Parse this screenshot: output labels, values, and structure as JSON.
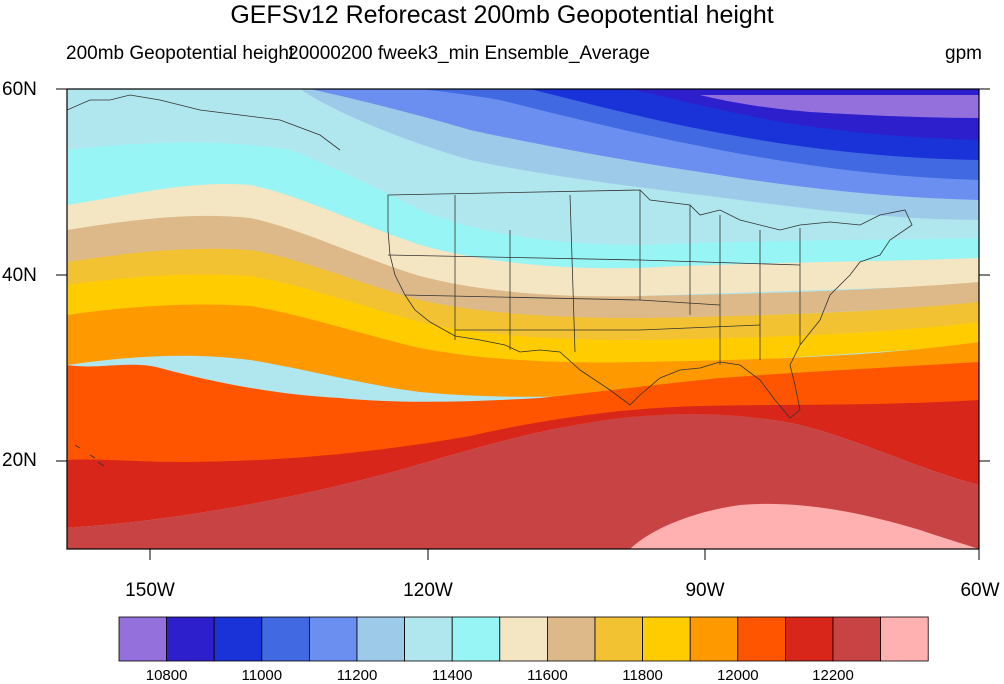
{
  "title": "GEFSv12 Reforecast 200mb Geopotential height",
  "subtitle": {
    "left": "200mb Geopotential height",
    "center": "20000200 fweek3_min Ensemble_Average",
    "right": "gpm"
  },
  "axes": {
    "lat_labels": [
      "60N",
      "40N",
      "20N"
    ],
    "lon_labels": [
      "150W",
      "120W",
      "90W",
      "60W"
    ]
  },
  "colorbar": {
    "colors": [
      "#9370db",
      "#2e1fcc",
      "#1a33d9",
      "#4169e1",
      "#6b8ff0",
      "#9ecae9",
      "#b0e6ee",
      "#98f5f5",
      "#f5e6c3",
      "#ddb98a",
      "#f2c233",
      "#ffcc00",
      "#ff9900",
      "#ff5500",
      "#d9261a",
      "#c84343",
      "#ffb0b0"
    ],
    "labels": [
      "10800",
      "11000",
      "11200",
      "11400",
      "11600",
      "11800",
      "12000",
      "12200"
    ]
  },
  "map": {
    "projection": "cylindrical equidistant",
    "lat_range": [
      "10N",
      "60N"
    ],
    "lon_range": [
      "160W",
      "60W"
    ],
    "boundaries": "US states and coastlines",
    "field": "200mb Geopotential height",
    "units": "gpm"
  }
}
